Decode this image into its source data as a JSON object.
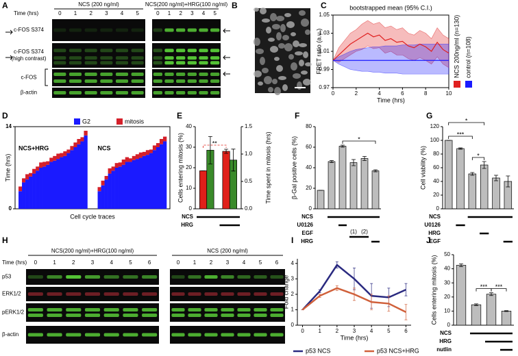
{
  "panel_letters": [
    "A",
    "B",
    "C",
    "D",
    "E",
    "F",
    "G",
    "H",
    "I",
    "J"
  ],
  "blot_a": {
    "time_label": "Time (hrs)",
    "groups": [
      {
        "label": "NCS (200 ng/ml)",
        "lanes": [
          "0",
          "1",
          "2",
          "3",
          "4",
          "5"
        ]
      },
      {
        "label": "NCS(200 ng/ml)+HRG(100 ng/ml)",
        "lanes": [
          "0",
          "1",
          "2",
          "3",
          "4",
          "5"
        ]
      }
    ],
    "rows": [
      [
        "c-FOS S374"
      ],
      [
        "c-FOS S374",
        "(high contrast)"
      ],
      [
        "c-FOS"
      ],
      [
        "β-actin"
      ]
    ]
  },
  "blot_h": {
    "time_label": "Time (hrs)",
    "groups": [
      {
        "label": "NCS(200 ng/ml)+HRG(100 ng/ml)",
        "lanes": [
          "0",
          "1",
          "2",
          "3",
          "4",
          "5",
          "6"
        ]
      },
      {
        "label": "NCS (200 ng/ml)",
        "lanes": [
          "0",
          "1",
          "2",
          "3",
          "4",
          "5",
          "6"
        ]
      }
    ],
    "rows": [
      [
        "p53"
      ],
      [
        "ERK1/2"
      ],
      [
        "pERK1/2"
      ],
      [
        "β-actin"
      ]
    ]
  },
  "chart_data": [
    {
      "type": "line",
      "title": "bootstrapped mean (95% C.I.)",
      "xlabel": "Time (hrs)",
      "ylabel": "FRET ratio (a.u.)",
      "x": [
        0,
        0.5,
        1,
        1.5,
        2,
        2.5,
        3,
        3.5,
        4,
        4.5,
        5,
        5.5,
        6,
        6.5,
        7,
        7.5,
        8,
        8.5,
        9,
        9.5,
        10
      ],
      "xlim": [
        0,
        10
      ],
      "xticks": [
        0,
        2,
        4,
        6,
        8,
        10
      ],
      "ylim": [
        0.97,
        1.05
      ],
      "yticks": [
        0.97,
        0.99,
        1.01,
        1.03,
        1.05
      ],
      "frame": true,
      "legend": "right",
      "series": [
        {
          "name": "NCS 200ng/ml (n=130)",
          "color": "#e02020",
          "values": [
            1.0,
            1.006,
            1.012,
            1.018,
            1.022,
            1.026,
            1.03,
            1.026,
            1.028,
            1.022,
            1.024,
            1.02,
            1.021,
            1.016,
            1.014,
            1.018,
            1.015,
            1.01,
            1.02,
            1.012,
            1.008
          ],
          "lower": [
            1.0,
            0.998,
            1.002,
            1.006,
            1.01,
            1.012,
            1.016,
            1.013,
            1.014,
            1.008,
            1.01,
            1.006,
            1.006,
            1.002,
            1.0,
            1.003,
            1.0,
            0.996,
            1.004,
            0.996,
            0.992
          ],
          "upper": [
            1.0,
            1.014,
            1.022,
            1.03,
            1.034,
            1.04,
            1.044,
            1.04,
            1.042,
            1.036,
            1.038,
            1.034,
            1.036,
            1.03,
            1.028,
            1.033,
            1.03,
            1.024,
            1.036,
            1.028,
            1.024
          ]
        },
        {
          "name": "control (n=108)",
          "color": "#1a1aff",
          "values": [
            1.0,
            1.0,
            1.0,
            1.0,
            1.0,
            1.0,
            1.0,
            1.0,
            1.0,
            1.0,
            1.0,
            1.0,
            1.0,
            1.0,
            1.0,
            1.0,
            1.0,
            1.0,
            1.0,
            1.0,
            1.0
          ],
          "lower": [
            1.0,
            0.996,
            0.993,
            0.99,
            0.989,
            0.988,
            0.988,
            0.987,
            0.987,
            0.986,
            0.986,
            0.986,
            0.985,
            0.985,
            0.985,
            0.985,
            0.985,
            0.985,
            0.985,
            0.985,
            0.985
          ],
          "upper": [
            1.0,
            1.004,
            1.007,
            1.01,
            1.012,
            1.013,
            1.014,
            1.015,
            1.015,
            1.016,
            1.016,
            1.016,
            1.017,
            1.017,
            1.017,
            1.018,
            1.018,
            1.018,
            1.018,
            1.018,
            1.018
          ]
        }
      ]
    },
    {
      "type": "stacked_bar",
      "ylabel": "Time (hrs)",
      "xlabel": "Cell cycle traces",
      "ylim": [
        0,
        14
      ],
      "yticks": [
        0,
        14
      ],
      "legend": [
        {
          "name": "G2",
          "color": "#1a1aff"
        },
        {
          "name": "mitosis",
          "color": "#d4202a"
        }
      ],
      "groups": [
        {
          "label": "NCS+HRG",
          "stacks": [
            [
              3,
              4.5,
              5,
              5.5,
              6,
              6.5,
              7,
              7.2,
              7.5,
              8,
              8.2,
              8.5,
              8.8,
              9,
              9.5,
              10,
              10.5,
              11,
              11.5,
              12.5
            ],
            [
              0.8,
              0.7,
              0.9,
              0.6,
              0.8,
              0.7,
              0.9,
              0.8,
              0.6,
              0.7,
              0.8,
              0.9,
              0.7,
              0.8,
              0.6,
              0.7,
              0.8,
              0.9,
              0.7,
              0.8
            ]
          ]
        },
        {
          "label": "NCS",
          "stacks": [
            [
              3,
              4,
              5,
              6,
              6.5,
              7,
              7.2,
              7.5,
              8,
              8,
              8.3,
              8.5,
              8.7,
              9,
              9.2,
              9.5,
              10,
              10.5,
              11,
              11.5
            ],
            [
              0.7,
              0.8,
              0.6,
              0.9,
              0.7,
              0.8,
              0.7,
              0.9,
              0.8,
              0.6,
              0.7,
              0.8,
              0.9,
              0.7,
              0.8,
              0.6,
              0.8,
              0.7,
              0.9,
              0.8
            ]
          ]
        }
      ]
    },
    {
      "type": "bar",
      "ylabel": "Cells entering  mitosis (%)",
      "y2label": "Time spent in mitosis (hrs)",
      "categories": [
        null,
        null
      ],
      "ylim": [
        0,
        40
      ],
      "yticks": [
        0,
        10,
        20,
        30,
        40
      ],
      "y2lim": [
        0,
        1.5
      ],
      "y2ticks": [
        {
          "value": 0,
          "label": "0.0"
        },
        0.5,
        {
          "value": 1,
          "label": "1.0"
        },
        1.5
      ],
      "series": [
        {
          "color": "#e0201a",
          "values": [
            18.5,
            28
          ],
          "errors": [
            0,
            1
          ]
        },
        {
          "color": "#3a8a2a",
          "axis": "y2",
          "values": [
            1.07,
            0.89
          ],
          "errors": [
            0.25,
            0.2
          ]
        }
      ],
      "conditions": [
        {
          "name": "NCS",
          "on": [
            true,
            true
          ]
        },
        {
          "name": "HRG",
          "on": [
            false,
            true
          ]
        }
      ],
      "significance": [
        {
          "label": "**",
          "from": 0,
          "to": 1,
          "series": 0,
          "color": "#e0201a",
          "style": "dashed"
        }
      ]
    },
    {
      "type": "bar",
      "ylabel": "β-Gal positive cells (%)",
      "categories": [
        null,
        null,
        null,
        null,
        null,
        null
      ],
      "ylim": [
        0,
        80
      ],
      "yticks": [
        0,
        20,
        40,
        60,
        80
      ],
      "series": [
        {
          "color": "#bdbdbd",
          "values": [
            18,
            46,
            61,
            45,
            49,
            37
          ],
          "errors": [
            0,
            1,
            1,
            3,
            2,
            1
          ]
        }
      ],
      "conditions": [
        {
          "name": "NCS",
          "on": [
            false,
            true,
            true,
            true,
            true,
            true
          ]
        },
        {
          "name": "U0126",
          "on": [
            false,
            false,
            true,
            false,
            false,
            false
          ]
        },
        {
          "name": "EGF",
          "on": [
            false,
            false,
            false,
            true,
            true,
            false
          ],
          "sublabels": [
            null,
            null,
            null,
            "(1)",
            "(2)",
            null
          ]
        },
        {
          "name": "HRG",
          "on": [
            false,
            false,
            false,
            false,
            false,
            true
          ]
        }
      ],
      "significance": [
        {
          "label": "*",
          "from": 2,
          "to": 5
        }
      ]
    },
    {
      "type": "bar",
      "ylabel": "Cell viability (%)",
      "categories": [
        null,
        null,
        null,
        null,
        null,
        null
      ],
      "ylim": [
        0,
        120
      ],
      "yticks": [
        0,
        20,
        40,
        60,
        80,
        100,
        120
      ],
      "series": [
        {
          "color": "#bdbdbd",
          "values": [
            100,
            88,
            51,
            64,
            45,
            40
          ],
          "errors": [
            0,
            1,
            2,
            5,
            4,
            8
          ]
        }
      ],
      "conditions": [
        {
          "name": "NCS",
          "on": [
            false,
            false,
            true,
            true,
            true,
            true
          ]
        },
        {
          "name": "U0126",
          "on": [
            false,
            true,
            false,
            false,
            false,
            false
          ]
        },
        {
          "name": "HRG",
          "on": [
            false,
            false,
            false,
            true,
            false,
            false
          ]
        },
        {
          "name": "EGF",
          "on": [
            false,
            false,
            false,
            false,
            false,
            true
          ]
        }
      ],
      "significance": [
        {
          "label": "***",
          "from": 0,
          "to": 2
        },
        {
          "label": "*",
          "from": 2,
          "to": 3
        },
        {
          "label": "*",
          "from": 0,
          "to": 3
        }
      ]
    },
    {
      "type": "line",
      "xlabel": "Time (hrs)",
      "ylabel": "Fold change",
      "x": [
        0,
        1,
        2,
        3,
        4,
        5,
        6
      ],
      "xlim": [
        -0.3,
        6.3
      ],
      "xticks": [
        0,
        1,
        2,
        3,
        4,
        5,
        6
      ],
      "ylim": [
        0,
        4.3
      ],
      "yticks": [
        0,
        1,
        2,
        3,
        4
      ],
      "legend": "bottom",
      "series": [
        {
          "name": "p53 NCS",
          "color": "#2a2a80",
          "values": [
            1,
            2.2,
            3.9,
            3.0,
            1.9,
            1.8,
            2.3
          ],
          "errors": [
            0,
            0.1,
            0.2,
            0.7,
            0.8,
            0.6,
            0.4
          ]
        },
        {
          "name": "p53 NCS+HRG",
          "color": "#d0603a",
          "values": [
            1,
            1.9,
            2.4,
            2.0,
            1.5,
            1.4,
            0.85
          ],
          "errors": [
            0,
            0.1,
            0.15,
            0.4,
            0.5,
            0.5,
            0.5
          ]
        }
      ]
    },
    {
      "type": "bar",
      "ylabel": "Cells entering mitosis (%)",
      "categories": [
        null,
        null,
        null,
        null
      ],
      "ylim": [
        0,
        50
      ],
      "yticks": [
        0,
        10,
        20,
        30,
        40,
        50
      ],
      "series": [
        {
          "color": "#bdbdbd",
          "values": [
            42.5,
            14.5,
            22,
            10
          ],
          "errors": [
            1,
            0.6,
            1,
            0.3
          ]
        }
      ],
      "conditions": [
        {
          "name": "NCS",
          "on": [
            false,
            true,
            true,
            true
          ]
        },
        {
          "name": "HRG",
          "on": [
            false,
            false,
            true,
            true
          ]
        },
        {
          "name": "nutlin",
          "on": [
            false,
            false,
            false,
            true
          ]
        }
      ],
      "significance": [
        {
          "label": "***",
          "from": 1,
          "to": 2
        },
        {
          "label": "***",
          "from": 2,
          "to": 3
        }
      ]
    }
  ]
}
